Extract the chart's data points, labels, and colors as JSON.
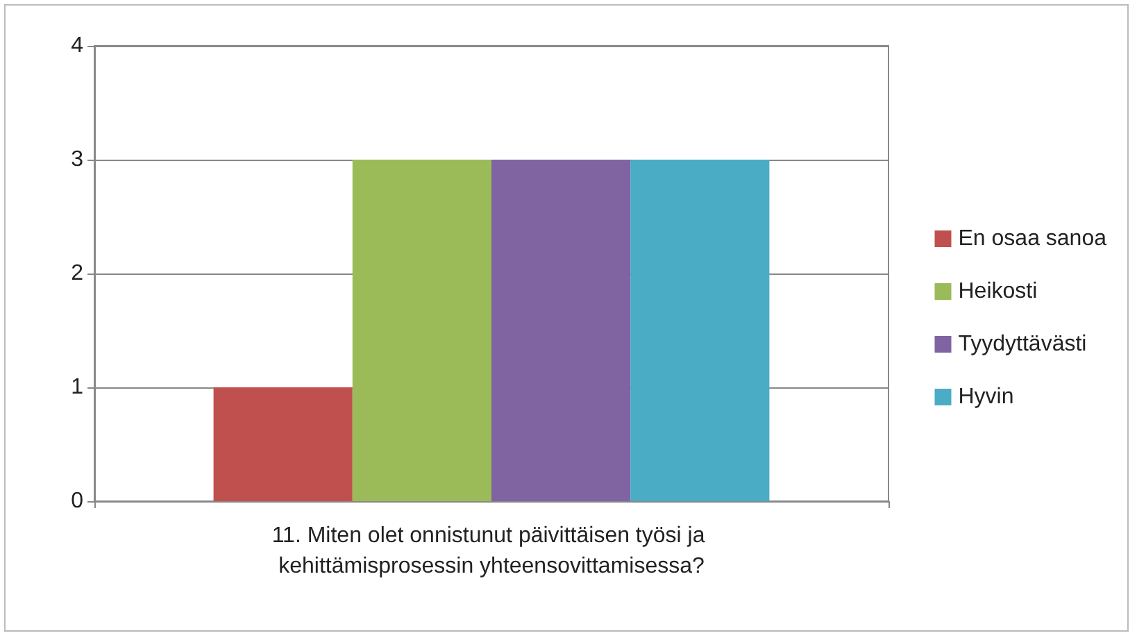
{
  "chart_data": {
    "type": "bar",
    "categories": [
      "11. Miten olet onnistunut päivittäisen työsi ja kehittämisprosessin yhteensovittamisessa?"
    ],
    "series": [
      {
        "name": "En osaa sanoa",
        "color": "#c0504d",
        "values": [
          1
        ]
      },
      {
        "name": "Heikosti",
        "color": "#9bbb59",
        "values": [
          3
        ]
      },
      {
        "name": "Tyydyttävästi",
        "color": "#8064a2",
        "values": [
          3
        ]
      },
      {
        "name": "Hyvin",
        "color": "#4bacc6",
        "values": [
          3
        ]
      }
    ],
    "ylim": [
      0,
      4
    ],
    "yticks": [
      0,
      1,
      2,
      3,
      4
    ],
    "grid": "y",
    "legend": "right"
  }
}
